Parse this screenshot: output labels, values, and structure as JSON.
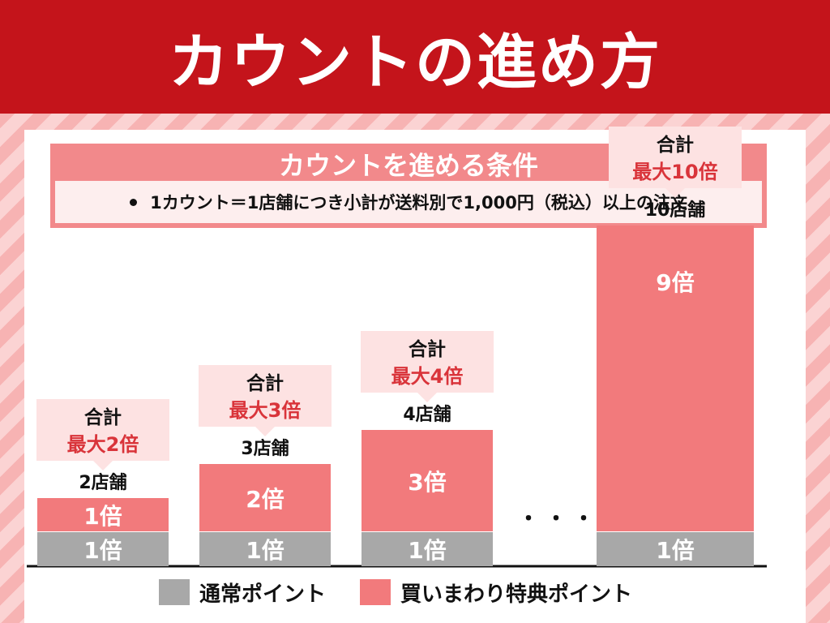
{
  "header": {
    "title": "カウントの進め方"
  },
  "conditions": {
    "title": "カウントを進める条件",
    "items": [
      "1カウント＝1店舗につき小計が送料別で1,000円（税込）以上の注文"
    ]
  },
  "colors": {
    "base": "#a8a8a8",
    "bonus": "#f27a7c",
    "accent": "#d9343a",
    "callout": "#fde2e2"
  },
  "chart_data": {
    "type": "bar",
    "stacked": true,
    "categories": [
      "2店舗",
      "3店舗",
      "4店舗",
      "10店舗"
    ],
    "series": [
      {
        "name": "通常ポイント",
        "values": [
          1,
          1,
          1,
          1
        ],
        "labels": [
          "1倍",
          "1倍",
          "1倍",
          "1倍"
        ]
      },
      {
        "name": "買いまわり特典ポイント",
        "values": [
          1,
          2,
          3,
          9
        ],
        "labels": [
          "1倍",
          "2倍",
          "3倍",
          "9倍"
        ]
      }
    ],
    "totals": [
      {
        "label": "合計",
        "value": "最大2倍"
      },
      {
        "label": "合計",
        "value": "最大3倍"
      },
      {
        "label": "合計",
        "value": "最大4倍"
      },
      {
        "label": "合計",
        "value": "最大10倍"
      }
    ],
    "gap_marker": "・・・",
    "axis": {
      "y_visible": false,
      "grid": false
    }
  }
}
